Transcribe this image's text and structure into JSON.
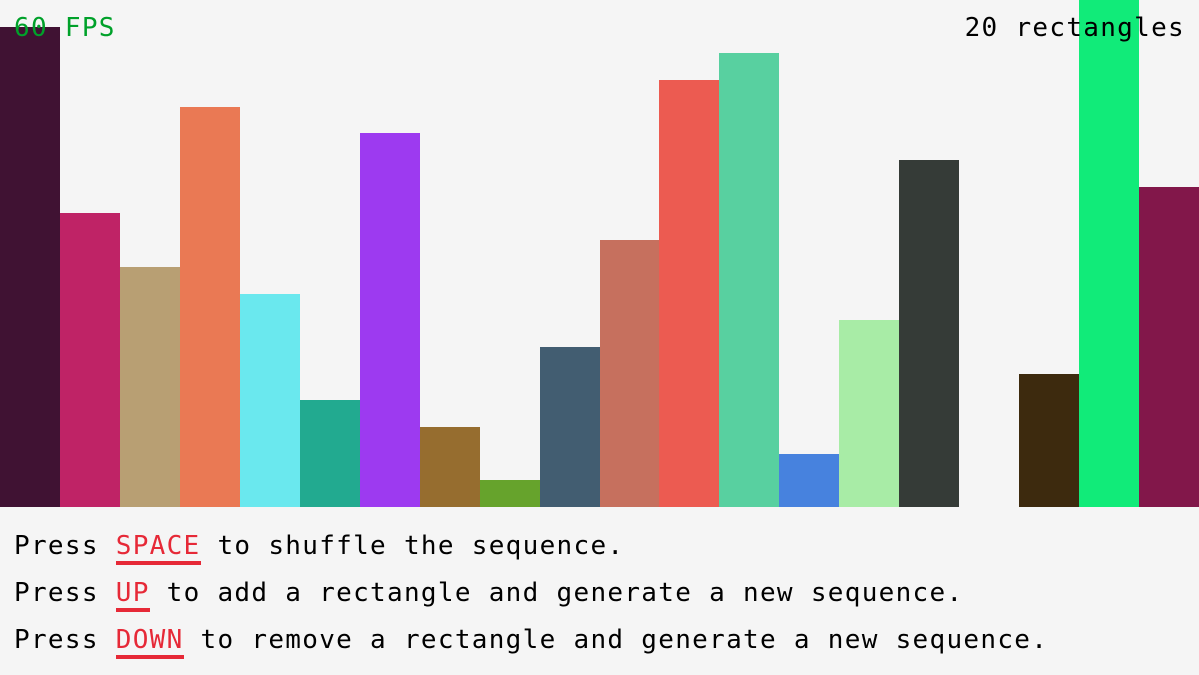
{
  "hud": {
    "fps": "60 FPS",
    "count": "20 rectangles"
  },
  "colors": {
    "background": "#f5f5f5",
    "fps": "#00a12a",
    "key": "#e62937",
    "text": "#000000"
  },
  "chart_data": {
    "type": "bar",
    "max_value": 19,
    "values": [
      18,
      11,
      9,
      15,
      8,
      4,
      14,
      3,
      1,
      6,
      10,
      16,
      17,
      2,
      7,
      13,
      0,
      5,
      19,
      12
    ],
    "colors": [
      "#401233",
      "#bf2366",
      "#b89f73",
      "#ea7954",
      "#6ae8ee",
      "#22aa90",
      "#9d3af0",
      "#966d2f",
      "#66a32c",
      "#425d71",
      "#c6705e",
      "#ec5b51",
      "#58d0a0",
      "#4782de",
      "#a8eca6",
      "#353b37",
      "#f5f5f5",
      "#3d2a0e",
      "#11eb79",
      "#82174a"
    ]
  },
  "instructions": [
    {
      "prefix": "Press ",
      "key": "SPACE",
      "suffix": " to shuffle the sequence."
    },
    {
      "prefix": "Press ",
      "key": "UP",
      "suffix": " to add a rectangle and generate a new sequence."
    },
    {
      "prefix": "Press ",
      "key": "DOWN",
      "suffix": " to remove a rectangle and generate a new sequence."
    }
  ]
}
